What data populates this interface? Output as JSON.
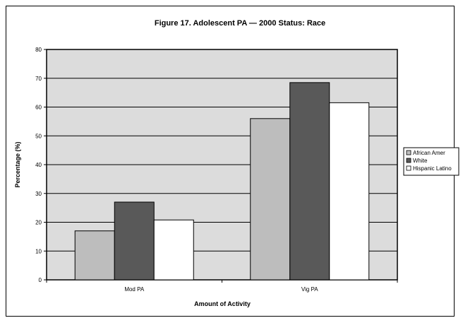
{
  "chart_data": {
    "type": "bar",
    "title": "Figure 17. Adolescent PA — 2000 Status: Race",
    "xlabel": "Amount of Activity",
    "ylabel": "Percentage (%)",
    "categories": [
      "Mod PA",
      "Vig PA"
    ],
    "ylim": [
      0,
      80
    ],
    "yticks": [
      "0",
      "10",
      "20",
      "30",
      "40",
      "50",
      "60",
      "70",
      "80"
    ],
    "grid": true,
    "legend_position": "right",
    "series": [
      {
        "name": "African Amer",
        "values": [
          17,
          56
        ],
        "color": "#bdbdbd"
      },
      {
        "name": "White",
        "values": [
          27,
          68.5
        ],
        "color": "#595959"
      },
      {
        "name": "Hispanic Latino",
        "values": [
          20.8,
          61.5
        ],
        "color": "#ffffff"
      }
    ],
    "plot_background": "#dcdcdc"
  }
}
